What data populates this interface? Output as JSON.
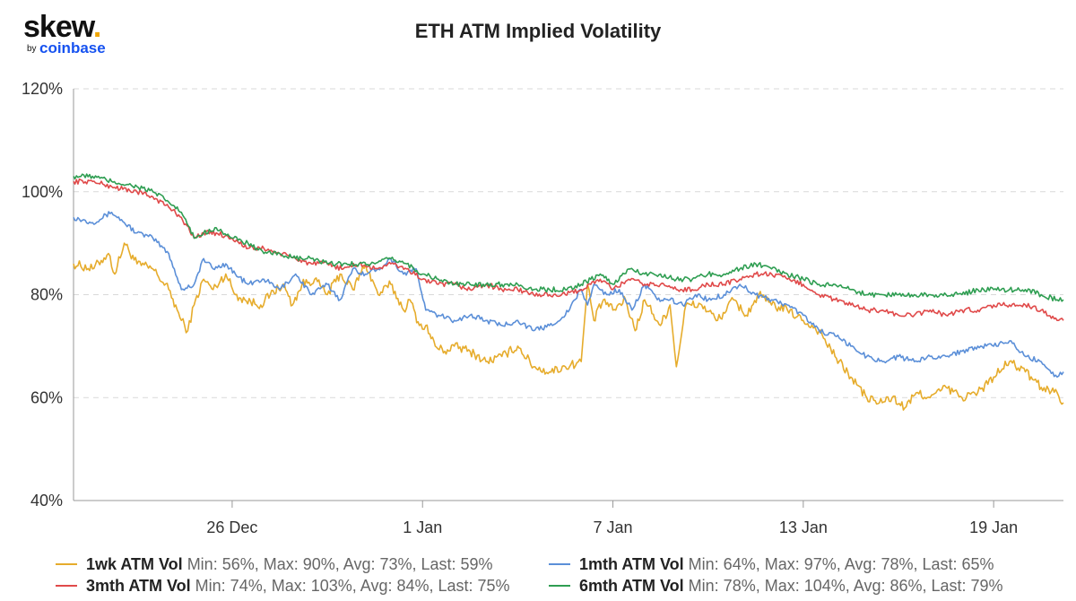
{
  "logo": {
    "word": "skew",
    "dot": ".",
    "by": "by",
    "brand": "coinbase"
  },
  "chart_data": {
    "type": "line",
    "title": "ETH ATM Implied Volatility",
    "xlabel": "",
    "ylabel": "",
    "ylim": [
      40,
      120
    ],
    "yticks": [
      "40%",
      "60%",
      "80%",
      "100%",
      "120%"
    ],
    "xlim": [
      0,
      31.2
    ],
    "xticks": [
      {
        "label": "26 Dec",
        "x": 5
      },
      {
        "label": "1 Jan",
        "x": 11
      },
      {
        "label": "7 Jan",
        "x": 17
      },
      {
        "label": "13 Jan",
        "x": 23
      },
      {
        "label": "19 Jan",
        "x": 29
      }
    ],
    "grid": true,
    "legend_position": "bottom",
    "series": [
      {
        "name": "1wk ATM Vol",
        "stats": "Min: 56%, Max: 90%, Avg: 73%, Last: 59%",
        "color": "#e6ac2c",
        "x": [
          0,
          0.6,
          1.1,
          1.3,
          1.6,
          2.0,
          2.5,
          3.0,
          3.4,
          3.6,
          3.8,
          4.1,
          4.4,
          4.8,
          5.1,
          5.4,
          5.9,
          6.2,
          6.6,
          6.9,
          7.2,
          7.6,
          8.0,
          8.4,
          8.8,
          9.2,
          9.6,
          10.0,
          10.4,
          10.6,
          10.9,
          11.1,
          11.4,
          11.7,
          12.0,
          12.5,
          13.0,
          13.5,
          14.0,
          14.5,
          15.0,
          15.5,
          16.0,
          16.2,
          16.4,
          16.7,
          17.0,
          17.4,
          17.7,
          18.0,
          18.5,
          18.8,
          19.0,
          19.3,
          19.8,
          20.3,
          20.8,
          21.2,
          21.6,
          22.0,
          22.5,
          23.0,
          23.5,
          24.0,
          24.5,
          25.0,
          25.4,
          25.8,
          26.2,
          26.6,
          27.0,
          27.5,
          28.0,
          28.5,
          29.0,
          29.5,
          30.0,
          30.5,
          31.0,
          31.2
        ],
        "values": [
          86,
          85,
          88,
          84,
          90,
          86,
          85,
          81,
          75,
          73,
          78,
          83,
          81,
          84,
          80,
          79,
          78,
          80,
          82,
          78,
          82,
          83,
          80,
          84,
          81,
          86,
          80,
          82,
          77,
          79,
          74,
          74,
          70,
          69,
          70,
          69,
          67,
          68,
          70,
          66,
          65,
          66,
          67,
          82,
          75,
          79,
          77,
          79,
          73,
          79,
          74,
          78,
          66,
          78,
          78,
          75,
          79,
          76,
          80,
          78,
          77,
          75,
          73,
          68,
          64,
          60,
          59,
          60,
          58,
          61,
          60,
          62,
          60,
          61,
          64,
          67,
          65,
          62,
          61,
          59
        ]
      },
      {
        "name": "1mth ATM Vol",
        "stats": "Min: 64%, Max: 97%, Avg: 78%, Last: 65%",
        "color": "#5b8fd8",
        "x": [
          0,
          0.6,
          1.2,
          1.6,
          2.0,
          2.5,
          3.0,
          3.4,
          3.8,
          4.1,
          4.4,
          4.8,
          5.1,
          5.5,
          6.0,
          6.5,
          7.0,
          7.5,
          8.0,
          8.4,
          8.8,
          9.2,
          9.6,
          10.0,
          10.4,
          10.8,
          11.1,
          11.5,
          12.0,
          12.5,
          13.0,
          13.5,
          14.0,
          14.5,
          15.0,
          15.5,
          16.0,
          16.2,
          16.4,
          16.8,
          17.2,
          17.6,
          18.0,
          18.4,
          18.8,
          19.2,
          19.6,
          20.0,
          20.5,
          21.0,
          21.5,
          22.0,
          22.5,
          23.0,
          23.5,
          24.0,
          24.5,
          25.0,
          25.5,
          26.0,
          26.5,
          27.0,
          27.5,
          28.0,
          28.5,
          29.0,
          29.5,
          30.0,
          30.5,
          31.0,
          31.2
        ],
        "values": [
          95,
          94,
          96,
          94,
          92,
          91,
          88,
          81,
          82,
          87,
          85,
          86,
          84,
          82,
          83,
          81,
          84,
          80,
          82,
          79,
          85,
          84,
          85,
          87,
          84,
          85,
          77,
          76,
          75,
          76,
          75,
          74,
          75,
          73,
          74,
          76,
          81,
          78,
          82,
          80,
          81,
          77,
          82,
          79,
          79,
          78,
          80,
          79,
          80,
          82,
          80,
          79,
          78,
          76,
          73,
          72,
          70,
          68,
          67,
          68,
          67,
          68,
          68,
          69,
          70,
          70,
          71,
          68,
          67,
          64,
          65
        ]
      },
      {
        "name": "3mth ATM Vol",
        "stats": "Min: 74%, Max: 103%, Avg: 84%, Last: 75%",
        "color": "#e04a4a",
        "x": [
          0,
          0.6,
          1.2,
          2.0,
          2.5,
          3.0,
          3.4,
          3.8,
          4.1,
          4.5,
          5.0,
          5.5,
          6.0,
          6.5,
          7.0,
          7.5,
          8.0,
          8.5,
          9.0,
          9.5,
          10.0,
          10.5,
          11.0,
          11.5,
          12.0,
          12.5,
          13.0,
          13.5,
          14.0,
          14.5,
          15.0,
          15.5,
          16.0,
          16.3,
          16.6,
          17.0,
          17.5,
          18.0,
          18.5,
          19.0,
          19.5,
          20.0,
          20.5,
          21.0,
          21.5,
          22.0,
          22.5,
          23.0,
          23.5,
          24.0,
          24.5,
          25.0,
          25.5,
          26.0,
          26.5,
          27.0,
          27.5,
          28.0,
          28.5,
          29.0,
          29.5,
          30.0,
          30.5,
          31.0,
          31.2
        ],
        "values": [
          102,
          102,
          101,
          100,
          99,
          97,
          95,
          91,
          92,
          92,
          91,
          89,
          89,
          88,
          87,
          86,
          86,
          85,
          86,
          85,
          86,
          85,
          83,
          82,
          82,
          81,
          82,
          81,
          81,
          80,
          80,
          80,
          81,
          82,
          83,
          81,
          83,
          82,
          82,
          81,
          81,
          82,
          82,
          83,
          84,
          84,
          83,
          82,
          80,
          79,
          78,
          77,
          77,
          76,
          76,
          77,
          76,
          77,
          77,
          78,
          78,
          78,
          77,
          75,
          75
        ]
      },
      {
        "name": "6mth ATM Vol",
        "stats": "Min: 78%, Max: 104%, Avg: 86%, Last: 79%",
        "color": "#2f9e52",
        "x": [
          0,
          0.6,
          1.2,
          2.0,
          2.5,
          3.0,
          3.4,
          3.8,
          4.1,
          4.5,
          5.0,
          5.5,
          6.0,
          6.5,
          7.0,
          7.5,
          8.0,
          8.5,
          9.0,
          9.5,
          10.0,
          10.5,
          11.0,
          11.5,
          12.0,
          12.5,
          13.0,
          13.5,
          14.0,
          14.5,
          15.0,
          15.5,
          16.0,
          16.3,
          16.6,
          17.0,
          17.5,
          18.0,
          18.5,
          19.0,
          19.5,
          20.0,
          20.5,
          21.0,
          21.5,
          22.0,
          22.5,
          23.0,
          23.5,
          24.0,
          24.5,
          25.0,
          25.5,
          26.0,
          26.5,
          27.0,
          27.5,
          28.0,
          28.5,
          29.0,
          29.5,
          30.0,
          30.5,
          31.0,
          31.2
        ],
        "values": [
          103,
          103,
          102,
          101,
          100,
          98,
          96,
          91,
          92,
          93,
          91,
          90,
          88,
          88,
          87,
          87,
          86,
          86,
          86,
          86,
          87,
          86,
          84,
          83,
          82,
          82,
          82,
          82,
          82,
          81,
          81,
          81,
          82,
          83,
          84,
          82,
          85,
          84,
          84,
          83,
          83,
          84,
          84,
          85,
          86,
          85,
          84,
          83,
          82,
          82,
          81,
          80,
          80,
          80,
          80,
          80,
          80,
          80,
          81,
          81,
          81,
          81,
          80,
          79,
          79
        ]
      }
    ]
  }
}
